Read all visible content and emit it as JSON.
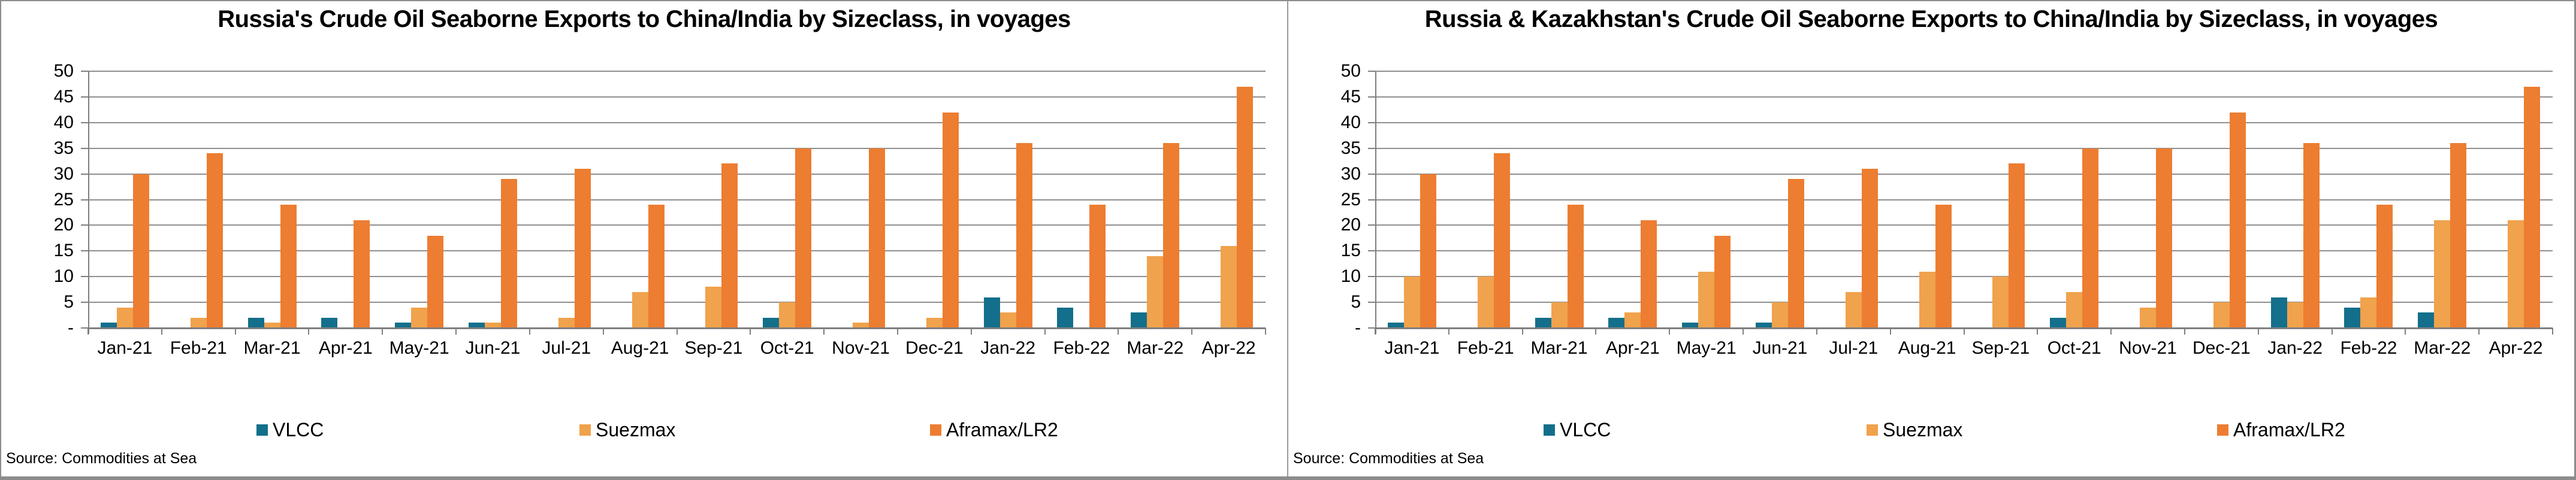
{
  "chart_data": [
    {
      "type": "bar",
      "title": "Russia's Crude Oil Seaborne Exports to China/India by Sizeclass, in voyages",
      "source_label": "Source: Commodities at Sea",
      "categories": [
        "Jan-21",
        "Feb-21",
        "Mar-21",
        "Apr-21",
        "May-21",
        "Jun-21",
        "Jul-21",
        "Aug-21",
        "Sep-21",
        "Oct-21",
        "Nov-21",
        "Dec-21",
        "Jan-22",
        "Feb-22",
        "Mar-22",
        "Apr-22"
      ],
      "series": [
        {
          "name": "VLCC",
          "color": "#136F8B",
          "values": [
            1,
            0,
            2,
            2,
            1,
            1,
            0,
            0,
            0,
            2,
            0,
            0,
            6,
            4,
            3,
            0
          ]
        },
        {
          "name": "Suezmax",
          "color": "#F0A24C",
          "values": [
            4,
            2,
            1,
            0,
            4,
            1,
            2,
            7,
            8,
            5,
            1,
            2,
            3,
            0,
            14,
            16
          ]
        },
        {
          "name": "Aframax/LR2",
          "color": "#ED7D31",
          "values": [
            30,
            34,
            24,
            21,
            18,
            29,
            31,
            24,
            32,
            35,
            35,
            42,
            36,
            24,
            36,
            47
          ]
        }
      ],
      "ylim": [
        0,
        50
      ],
      "ytick_step": 5,
      "zero_tick_label": "-",
      "grid": true,
      "legend_position": "bottom"
    },
    {
      "type": "bar",
      "title": "Russia & Kazakhstan's Crude Oil Seaborne Exports to China/India by Sizeclass, in voyages",
      "source_label": "Source: Commodities at Sea",
      "categories": [
        "Jan-21",
        "Feb-21",
        "Mar-21",
        "Apr-21",
        "May-21",
        "Jun-21",
        "Jul-21",
        "Aug-21",
        "Sep-21",
        "Oct-21",
        "Nov-21",
        "Dec-21",
        "Jan-22",
        "Feb-22",
        "Mar-22",
        "Apr-22"
      ],
      "series": [
        {
          "name": "VLCC",
          "color": "#136F8B",
          "values": [
            1,
            0,
            2,
            2,
            1,
            1,
            0,
            0,
            0,
            2,
            0,
            0,
            6,
            4,
            3,
            0
          ]
        },
        {
          "name": "Suezmax",
          "color": "#F0A24C",
          "values": [
            10,
            10,
            5,
            3,
            11,
            5,
            7,
            11,
            10,
            7,
            4,
            5,
            5,
            6,
            21,
            21
          ]
        },
        {
          "name": "Aframax/LR2",
          "color": "#ED7D31",
          "values": [
            30,
            34,
            24,
            21,
            18,
            29,
            31,
            24,
            32,
            35,
            35,
            42,
            36,
            24,
            36,
            47
          ]
        }
      ],
      "ylim": [
        0,
        50
      ],
      "ytick_step": 5,
      "zero_tick_label": "-",
      "grid": true,
      "legend_position": "bottom"
    }
  ]
}
